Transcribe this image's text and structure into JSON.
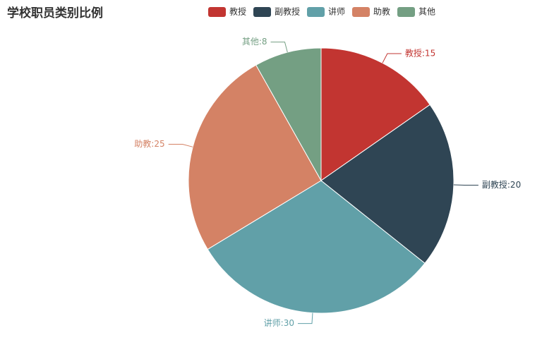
{
  "chart_data": {
    "type": "pie",
    "title": "学校职员类别比例",
    "categories": [
      "教授",
      "副教授",
      "讲师",
      "助教",
      "其他"
    ],
    "values": [
      15,
      20,
      30,
      25,
      8
    ],
    "value_labels": [
      "教授:15",
      "副教授:20",
      "讲师:30",
      "助教:25",
      "其他:8"
    ],
    "colors": [
      "#c23531",
      "#2f4554",
      "#61a0a8",
      "#d48265",
      "#749f83"
    ],
    "legend": "top"
  }
}
